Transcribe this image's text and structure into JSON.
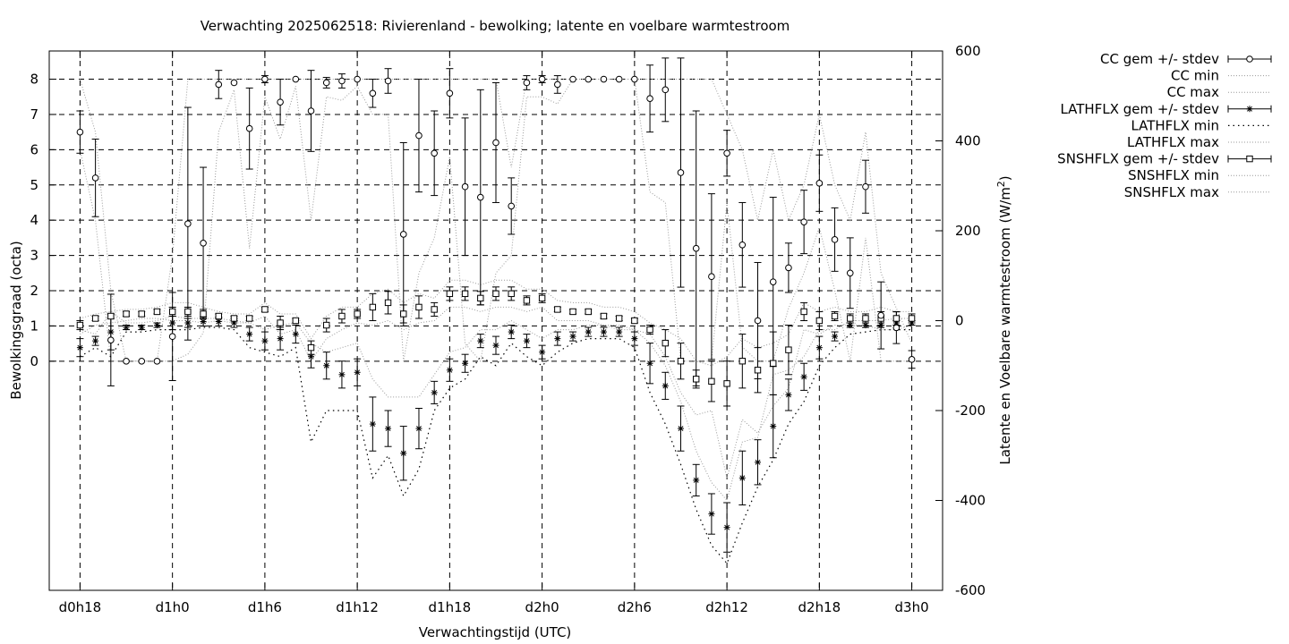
{
  "chart_data": {
    "type": "line",
    "title": "Verwachting 2025062518: Rivierenland - bewolking; latente en voelbare warmtestroom",
    "xlabel": "Verwachtingstijd (UTC)",
    "ylabel": "Bewolkingsgraad (octa)",
    "y2label": "Latente en Voelbare warmtestroom (W/m",
    "y2label_sup": "2",
    "y2label_end": ")",
    "x_range_hours": [
      16,
      74
    ],
    "ylim": [
      -6.5,
      8.8
    ],
    "y2lim": [
      -600,
      600
    ],
    "xticks": [
      {
        "h": 18,
        "label": "d0h18"
      },
      {
        "h": 24,
        "label": "d1h0"
      },
      {
        "h": 30,
        "label": "d1h6"
      },
      {
        "h": 36,
        "label": "d1h12"
      },
      {
        "h": 42,
        "label": "d1h18"
      },
      {
        "h": 48,
        "label": "d2h0"
      },
      {
        "h": 54,
        "label": "d2h6"
      },
      {
        "h": 60,
        "label": "d2h12"
      },
      {
        "h": 66,
        "label": "d2h18"
      },
      {
        "h": 72,
        "label": "d3h0"
      }
    ],
    "yticks": [
      "0",
      "1",
      "2",
      "3",
      "4",
      "5",
      "6",
      "7",
      "8"
    ],
    "y2ticks": [
      "-600",
      "-400",
      "-200",
      "0",
      "200",
      "400",
      "600"
    ],
    "grid": true,
    "legend_position": "outside-right",
    "legend": [
      "CC gem +/- stdev",
      "CC min",
      "CC max",
      "LATHFLX gem +/- stdev",
      "LATHFLX min",
      "LATHFLX max",
      "SNSHFLX gem +/- stdev",
      "SNSHFLX min",
      "SNSHFLX max"
    ],
    "hours": [
      18,
      19,
      20,
      21,
      22,
      23,
      24,
      25,
      26,
      27,
      28,
      29,
      30,
      31,
      32,
      33,
      34,
      35,
      36,
      37,
      38,
      39,
      40,
      41,
      42,
      43,
      44,
      45,
      46,
      47,
      48,
      49,
      50,
      51,
      52,
      53,
      54,
      55,
      56,
      57,
      58,
      59,
      60,
      61,
      62,
      63,
      64,
      65,
      66,
      67,
      68,
      69,
      70,
      71,
      72
    ],
    "cc_mean": [
      6.5,
      5.2,
      0.6,
      0.0,
      0.0,
      0.0,
      0.7,
      3.9,
      3.35,
      7.85,
      7.9,
      6.6,
      8.0,
      7.35,
      8.0,
      7.1,
      7.9,
      7.95,
      8.0,
      7.6,
      7.95,
      3.6,
      6.4,
      5.9,
      7.6,
      4.95,
      4.65,
      6.2,
      4.4,
      7.9,
      8.0,
      7.85,
      8.0,
      8.0,
      8.0,
      8.0,
      8.0,
      7.45,
      7.7,
      5.35,
      3.2,
      2.4,
      5.9,
      3.3,
      1.15,
      2.25,
      2.65,
      3.95,
      5.05,
      3.45,
      2.5,
      4.95,
      1.3,
      0.95,
      0.05
    ],
    "cc_sd": [
      0.6,
      1.1,
      1.3,
      0.0,
      0.0,
      0.0,
      1.25,
      3.3,
      2.15,
      0.4,
      0.0,
      1.15,
      0.1,
      0.65,
      0.0,
      1.15,
      0.15,
      0.2,
      0.0,
      0.4,
      0.35,
      2.6,
      1.6,
      1.2,
      0.7,
      1.95,
      3.05,
      1.7,
      0.8,
      0.2,
      0.1,
      0.25,
      0.0,
      0.0,
      0.0,
      0.0,
      0.0,
      0.95,
      0.9,
      3.25,
      3.9,
      2.35,
      0.65,
      1.2,
      1.65,
      2.4,
      0.7,
      0.9,
      0.8,
      0.9,
      1.0,
      0.75,
      0.95,
      0.45,
      0.25
    ],
    "cc_min": [
      6.0,
      4.0,
      0.0,
      0.0,
      0.0,
      0.0,
      0.0,
      0.2,
      0.8,
      6.5,
      7.7,
      3.2,
      7.5,
      6.3,
      7.8,
      4.0,
      7.5,
      7.4,
      7.8,
      7.0,
      7.0,
      0.0,
      2.5,
      3.5,
      5.8,
      0.5,
      0.0,
      2.5,
      3.0,
      7.5,
      7.5,
      7.3,
      8.0,
      8.0,
      8.0,
      8.0,
      8.0,
      4.8,
      4.5,
      0.0,
      0.0,
      0.0,
      4.5,
      0.4,
      0.0,
      0.0,
      1.5,
      2.5,
      3.8,
      2.0,
      0.0,
      3.5,
      0.0,
      0.0,
      0.0
    ],
    "cc_max": [
      8.0,
      6.5,
      2.0,
      0.0,
      0.0,
      0.0,
      3.0,
      8.0,
      8.0,
      8.0,
      8.0,
      8.0,
      8.0,
      8.0,
      8.0,
      8.0,
      8.0,
      8.0,
      8.0,
      8.0,
      8.0,
      8.0,
      8.0,
      8.0,
      8.0,
      8.0,
      8.0,
      8.0,
      5.5,
      8.0,
      8.0,
      8.0,
      8.0,
      8.0,
      8.0,
      8.0,
      8.0,
      8.0,
      8.0,
      8.0,
      8.0,
      8.0,
      7.0,
      6.0,
      4.0,
      6.0,
      4.0,
      5.0,
      7.0,
      5.0,
      4.0,
      6.5,
      2.5,
      1.5,
      0.5
    ],
    "lat_mean": [
      -60,
      -45,
      -25,
      -15,
      -15,
      -10,
      -5,
      -5,
      -2,
      -2,
      -5,
      -30,
      -45,
      -40,
      -30,
      -80,
      -100,
      -120,
      -115,
      -230,
      -240,
      -295,
      -240,
      -160,
      -110,
      -95,
      -45,
      -55,
      -25,
      -45,
      -70,
      -40,
      -35,
      -25,
      -25,
      -25,
      -40,
      -95,
      -145,
      -240,
      -355,
      -430,
      -460,
      -350,
      -315,
      -235,
      -165,
      -125,
      -60,
      -35,
      -10,
      -10,
      -10,
      -5,
      -5
    ],
    "lat_sd": [
      20,
      10,
      40,
      5,
      5,
      5,
      15,
      10,
      10,
      10,
      10,
      15,
      20,
      25,
      20,
      25,
      30,
      30,
      30,
      60,
      40,
      60,
      45,
      25,
      25,
      20,
      15,
      20,
      15,
      15,
      15,
      15,
      10,
      10,
      10,
      10,
      15,
      45,
      30,
      50,
      35,
      45,
      55,
      60,
      50,
      70,
      35,
      30,
      25,
      10,
      5,
      5,
      5,
      5,
      5
    ],
    "lat_min": [
      -80,
      -60,
      -80,
      -25,
      -25,
      -20,
      -20,
      -20,
      -15,
      -15,
      -20,
      -60,
      -70,
      -80,
      -60,
      -270,
      -200,
      -200,
      -200,
      -350,
      -300,
      -390,
      -330,
      -200,
      -150,
      -130,
      -80,
      -100,
      -50,
      -80,
      -100,
      -70,
      -50,
      -40,
      -40,
      -40,
      -60,
      -160,
      -230,
      -320,
      -420,
      -500,
      -540,
      -450,
      -370,
      -310,
      -230,
      -180,
      -100,
      -60,
      -30,
      -25,
      -20,
      -20,
      -20
    ],
    "lat_max": [
      -20,
      -30,
      20,
      -5,
      -5,
      0,
      10,
      5,
      5,
      5,
      0,
      -5,
      -20,
      -10,
      -5,
      -50,
      -70,
      -60,
      -50,
      -130,
      -170,
      -170,
      -170,
      -120,
      -70,
      -60,
      -20,
      -20,
      0,
      -20,
      -40,
      -20,
      -20,
      -10,
      -10,
      -10,
      -20,
      -50,
      -100,
      -180,
      -290,
      -360,
      -400,
      -270,
      -260,
      -120,
      -110,
      -80,
      -20,
      -20,
      0,
      0,
      0,
      5,
      5
    ],
    "sns_mean": [
      -10,
      5,
      10,
      15,
      15,
      20,
      20,
      20,
      15,
      10,
      5,
      5,
      25,
      -5,
      0,
      -60,
      -10,
      10,
      15,
      30,
      40,
      15,
      30,
      25,
      60,
      60,
      50,
      60,
      60,
      45,
      50,
      25,
      20,
      20,
      10,
      5,
      0,
      -20,
      -50,
      -90,
      -130,
      -135,
      -140,
      -90,
      -110,
      -95,
      -65,
      20,
      0,
      10,
      5,
      5,
      5,
      5,
      5
    ],
    "sns_sd": [
      10,
      5,
      5,
      5,
      5,
      5,
      10,
      10,
      10,
      5,
      5,
      5,
      5,
      15,
      5,
      15,
      15,
      15,
      10,
      30,
      25,
      20,
      25,
      15,
      15,
      15,
      15,
      15,
      15,
      10,
      10,
      5,
      5,
      5,
      5,
      5,
      5,
      10,
      30,
      40,
      20,
      45,
      50,
      60,
      50,
      70,
      55,
      20,
      20,
      10,
      10,
      10,
      15,
      15,
      10
    ],
    "sns_min": [
      -30,
      -10,
      -5,
      0,
      5,
      5,
      0,
      0,
      -5,
      0,
      -5,
      -5,
      10,
      -30,
      -20,
      -90,
      -40,
      -20,
      -5,
      -10,
      0,
      -20,
      -5,
      0,
      30,
      30,
      20,
      30,
      30,
      20,
      30,
      0,
      0,
      0,
      -10,
      -20,
      -20,
      -30,
      -80,
      -160,
      -210,
      -200,
      -350,
      -220,
      -250,
      -190,
      -150,
      -20,
      -30,
      -10,
      -10,
      -10,
      -20,
      -20,
      -10
    ],
    "sns_max": [
      5,
      15,
      20,
      25,
      25,
      30,
      40,
      40,
      30,
      20,
      15,
      15,
      40,
      15,
      15,
      -40,
      10,
      30,
      30,
      60,
      70,
      40,
      60,
      50,
      90,
      90,
      80,
      90,
      90,
      70,
      70,
      45,
      40,
      40,
      30,
      30,
      20,
      -5,
      -20,
      -40,
      -90,
      -100,
      -80,
      -40,
      -60,
      -50,
      -30,
      40,
      20,
      30,
      20,
      20,
      30,
      20,
      20
    ]
  }
}
